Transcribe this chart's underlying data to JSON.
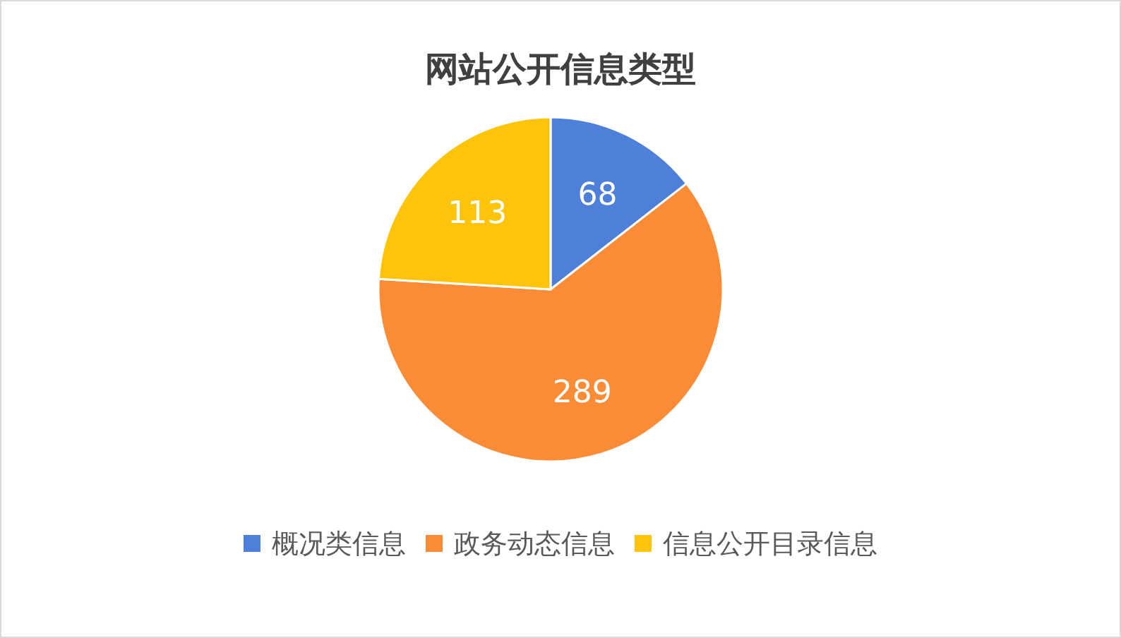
{
  "chart_data": {
    "type": "pie",
    "title": "网站公开信息类型",
    "categories": [
      "概况类信息",
      "政务动态信息",
      "信息公开目录信息"
    ],
    "values": [
      68,
      289,
      113
    ],
    "colors": [
      "#4e7fd9",
      "#fa8c37",
      "#fdc40b"
    ],
    "data_labels": true,
    "legend": "bottom"
  }
}
